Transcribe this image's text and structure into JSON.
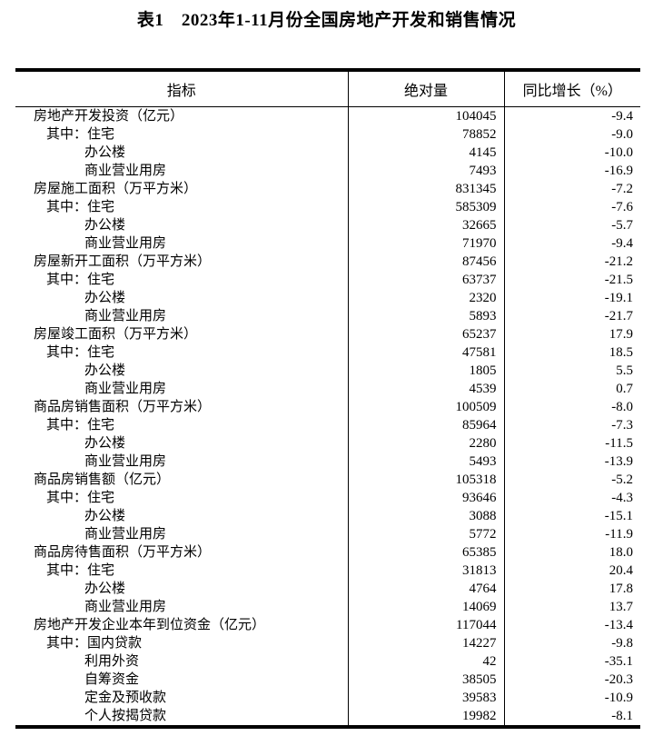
{
  "title": "表1　2023年1-11月份全国房地产开发和销售情况",
  "table": {
    "headers": [
      "指标",
      "绝对量",
      "同比增长（%）"
    ],
    "rows": [
      {
        "label": "房地产开发投资（亿元）",
        "indent": 0,
        "abs": "104045",
        "yoy": "-9.4"
      },
      {
        "label": "其中：住宅",
        "indent": 1,
        "abs": "78852",
        "yoy": "-9.0"
      },
      {
        "label": "办公楼",
        "indent": 2,
        "abs": "4145",
        "yoy": "-10.0"
      },
      {
        "label": "商业营业用房",
        "indent": 2,
        "abs": "7493",
        "yoy": "-16.9"
      },
      {
        "label": "房屋施工面积（万平方米）",
        "indent": 0,
        "abs": "831345",
        "yoy": "-7.2"
      },
      {
        "label": "其中：住宅",
        "indent": 1,
        "abs": "585309",
        "yoy": "-7.6"
      },
      {
        "label": "办公楼",
        "indent": 2,
        "abs": "32665",
        "yoy": "-5.7"
      },
      {
        "label": "商业营业用房",
        "indent": 2,
        "abs": "71970",
        "yoy": "-9.4"
      },
      {
        "label": "房屋新开工面积（万平方米）",
        "indent": 0,
        "abs": "87456",
        "yoy": "-21.2"
      },
      {
        "label": "其中：住宅",
        "indent": 1,
        "abs": "63737",
        "yoy": "-21.5"
      },
      {
        "label": "办公楼",
        "indent": 2,
        "abs": "2320",
        "yoy": "-19.1"
      },
      {
        "label": "商业营业用房",
        "indent": 2,
        "abs": "5893",
        "yoy": "-21.7"
      },
      {
        "label": "房屋竣工面积（万平方米）",
        "indent": 0,
        "abs": "65237",
        "yoy": "17.9"
      },
      {
        "label": "其中：住宅",
        "indent": 1,
        "abs": "47581",
        "yoy": "18.5"
      },
      {
        "label": "办公楼",
        "indent": 2,
        "abs": "1805",
        "yoy": "5.5"
      },
      {
        "label": "商业营业用房",
        "indent": 2,
        "abs": "4539",
        "yoy": "0.7"
      },
      {
        "label": "商品房销售面积（万平方米）",
        "indent": 0,
        "abs": "100509",
        "yoy": "-8.0"
      },
      {
        "label": "其中：住宅",
        "indent": 1,
        "abs": "85964",
        "yoy": "-7.3"
      },
      {
        "label": "办公楼",
        "indent": 2,
        "abs": "2280",
        "yoy": "-11.5"
      },
      {
        "label": "商业营业用房",
        "indent": 2,
        "abs": "5493",
        "yoy": "-13.9"
      },
      {
        "label": "商品房销售额（亿元）",
        "indent": 0,
        "abs": "105318",
        "yoy": "-5.2"
      },
      {
        "label": "其中：住宅",
        "indent": 1,
        "abs": "93646",
        "yoy": "-4.3"
      },
      {
        "label": "办公楼",
        "indent": 2,
        "abs": "3088",
        "yoy": "-15.1"
      },
      {
        "label": "商业营业用房",
        "indent": 2,
        "abs": "5772",
        "yoy": "-11.9"
      },
      {
        "label": "商品房待售面积（万平方米）",
        "indent": 0,
        "abs": "65385",
        "yoy": "18.0"
      },
      {
        "label": "其中：住宅",
        "indent": 1,
        "abs": "31813",
        "yoy": "20.4"
      },
      {
        "label": "办公楼",
        "indent": 2,
        "abs": "4764",
        "yoy": "17.8"
      },
      {
        "label": "商业营业用房",
        "indent": 2,
        "abs": "14069",
        "yoy": "13.7"
      },
      {
        "label": "房地产开发企业本年到位资金（亿元）",
        "indent": 0,
        "abs": "117044",
        "yoy": "-13.4"
      },
      {
        "label": "其中：国内贷款",
        "indent": 1,
        "abs": "14227",
        "yoy": "-9.8"
      },
      {
        "label": "利用外资",
        "indent": 2,
        "abs": "42",
        "yoy": "-35.1"
      },
      {
        "label": "自筹资金",
        "indent": 2,
        "abs": "38505",
        "yoy": "-20.3"
      },
      {
        "label": "定金及预收款",
        "indent": 2,
        "abs": "39583",
        "yoy": "-10.9"
      },
      {
        "label": "个人按揭贷款",
        "indent": 2,
        "abs": "19982",
        "yoy": "-8.1"
      }
    ]
  }
}
